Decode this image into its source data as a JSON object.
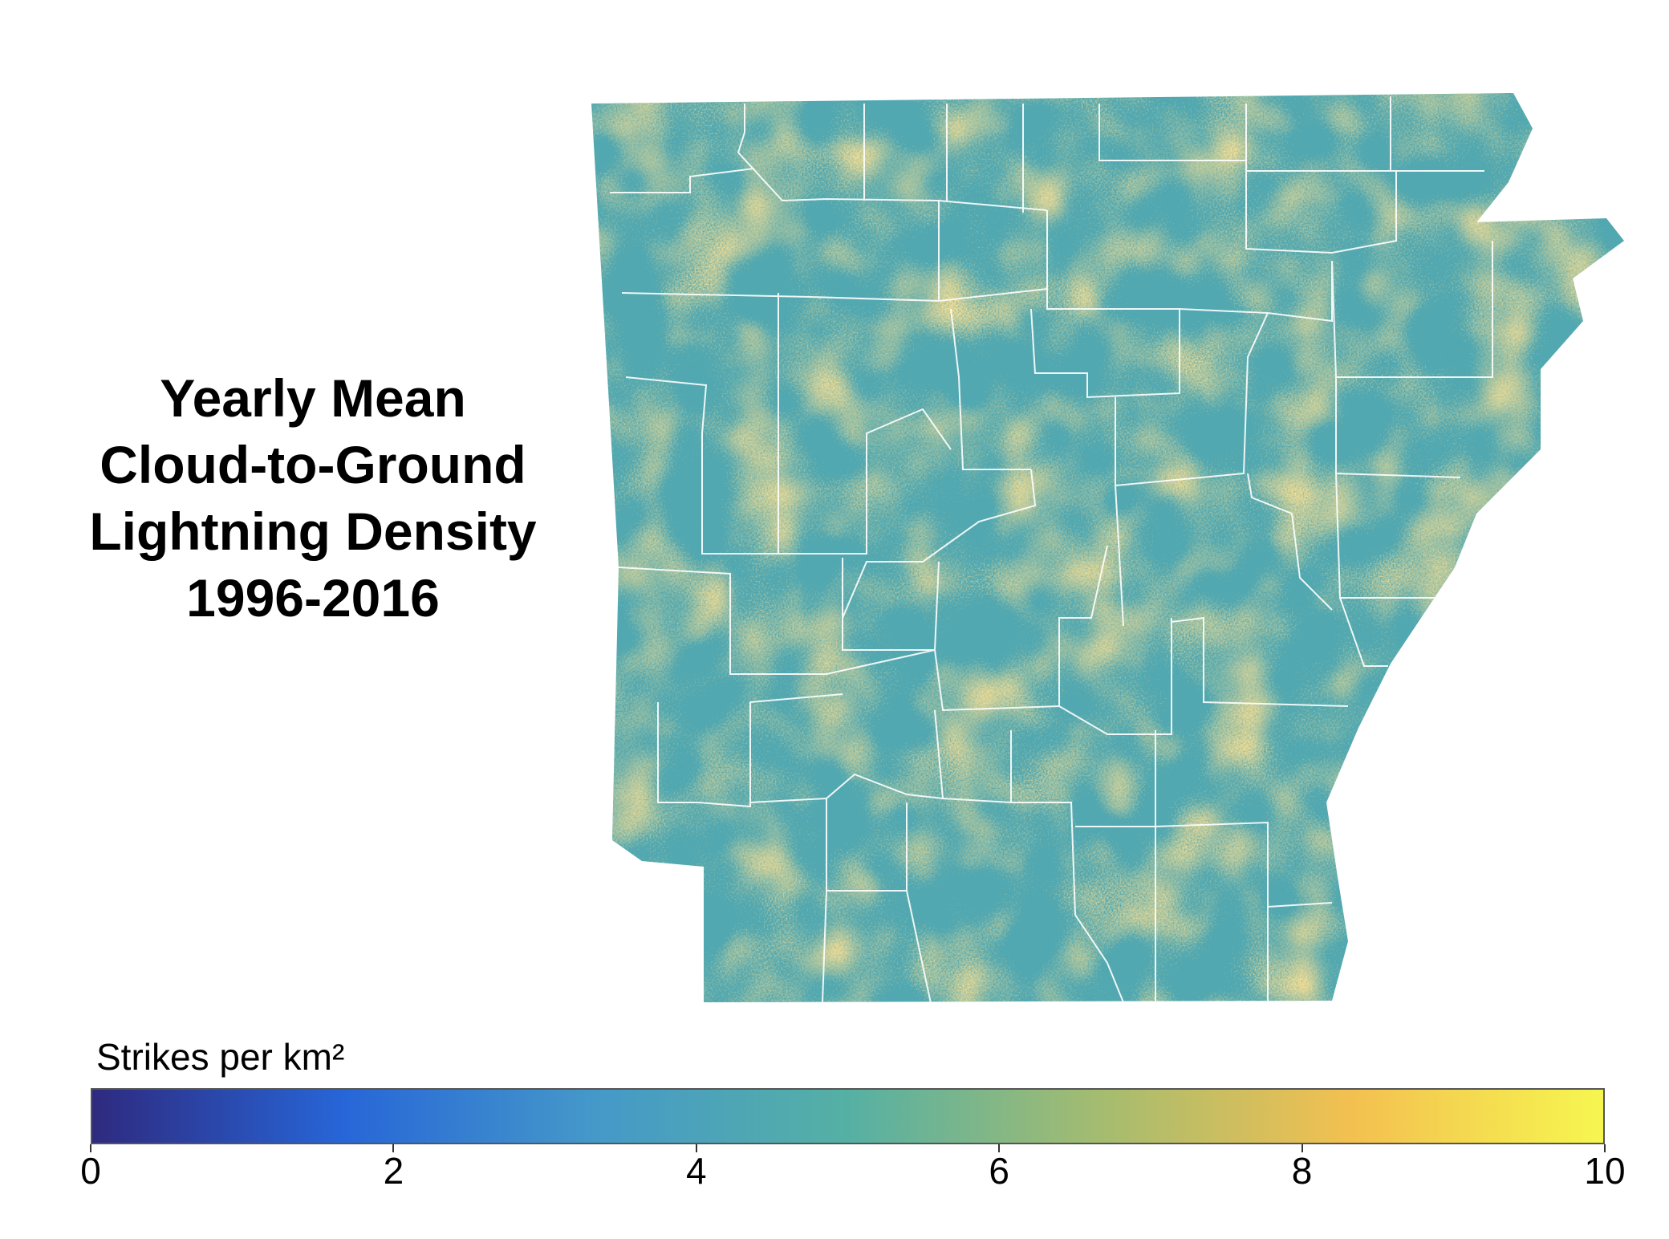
{
  "title_lines": [
    "Yearly Mean",
    "Cloud-to-Ground",
    "Lightning Density",
    "1996-2016"
  ],
  "chart_data": {
    "type": "heatmap",
    "region": "Arkansas counties",
    "colorbar": {
      "label": "Strikes per km²",
      "range": [
        0,
        10
      ],
      "ticks": [
        "0",
        "2",
        "4",
        "6",
        "8",
        "10"
      ],
      "orientation": "horizontal",
      "placement": "bottom",
      "colors": [
        "#2e2a7f",
        "#2766d8",
        "#4599c9",
        "#55b0a4",
        "#a4bc70",
        "#f3c050",
        "#f6f650"
      ]
    },
    "value_range_observed": [
      3,
      9
    ],
    "dominant_colors": {
      "low": "#4aa3b8",
      "high": "#e8b84a"
    },
    "border_color": "#ffffff"
  }
}
